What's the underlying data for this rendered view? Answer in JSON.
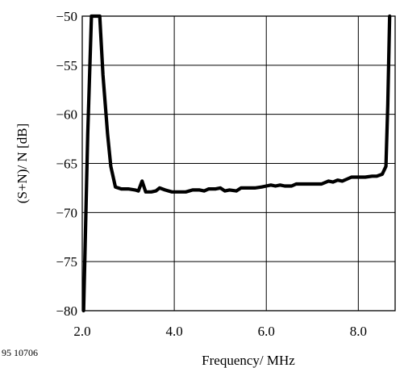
{
  "chart_data": {
    "type": "line",
    "xlabel": "Frequency/ MHz",
    "ylabel": "(S+N)/ N [dB]",
    "xlim": [
      2.0,
      8.8
    ],
    "ylim": [
      -80,
      -50
    ],
    "x_ticks": [
      "2.0",
      "4.0",
      "6.0",
      "8.0"
    ],
    "x_tick_values": [
      2.0,
      4.0,
      6.0,
      8.0
    ],
    "y_ticks": [
      "−50",
      "−55",
      "−60",
      "−65",
      "−70",
      "−75",
      "−80"
    ],
    "y_tick_values": [
      -50,
      -55,
      -60,
      -65,
      -70,
      -75,
      -80
    ],
    "grid": true,
    "series": [
      {
        "color": "#000000",
        "points": [
          [
            2.03,
            -80
          ],
          [
            2.12,
            -62
          ],
          [
            2.2,
            -50
          ],
          [
            2.38,
            -50
          ],
          [
            2.45,
            -56
          ],
          [
            2.55,
            -62
          ],
          [
            2.62,
            -65.3
          ],
          [
            2.72,
            -67.4
          ],
          [
            2.85,
            -67.6
          ],
          [
            3.0,
            -67.6
          ],
          [
            3.15,
            -67.7
          ],
          [
            3.22,
            -67.8
          ],
          [
            3.3,
            -66.8
          ],
          [
            3.38,
            -67.9
          ],
          [
            3.5,
            -67.9
          ],
          [
            3.6,
            -67.8
          ],
          [
            3.68,
            -67.5
          ],
          [
            3.8,
            -67.7
          ],
          [
            3.95,
            -67.9
          ],
          [
            4.1,
            -67.9
          ],
          [
            4.25,
            -67.9
          ],
          [
            4.4,
            -67.7
          ],
          [
            4.55,
            -67.7
          ],
          [
            4.65,
            -67.8
          ],
          [
            4.75,
            -67.6
          ],
          [
            4.9,
            -67.6
          ],
          [
            5.0,
            -67.5
          ],
          [
            5.1,
            -67.8
          ],
          [
            5.2,
            -67.7
          ],
          [
            5.35,
            -67.8
          ],
          [
            5.45,
            -67.5
          ],
          [
            5.6,
            -67.5
          ],
          [
            5.75,
            -67.5
          ],
          [
            5.9,
            -67.4
          ],
          [
            6.0,
            -67.3
          ],
          [
            6.1,
            -67.2
          ],
          [
            6.2,
            -67.3
          ],
          [
            6.3,
            -67.2
          ],
          [
            6.4,
            -67.3
          ],
          [
            6.55,
            -67.3
          ],
          [
            6.65,
            -67.1
          ],
          [
            6.8,
            -67.1
          ],
          [
            7.0,
            -67.1
          ],
          [
            7.2,
            -67.1
          ],
          [
            7.35,
            -66.8
          ],
          [
            7.45,
            -66.9
          ],
          [
            7.55,
            -66.7
          ],
          [
            7.65,
            -66.8
          ],
          [
            7.75,
            -66.6
          ],
          [
            7.85,
            -66.4
          ],
          [
            8.0,
            -66.4
          ],
          [
            8.15,
            -66.4
          ],
          [
            8.3,
            -66.3
          ],
          [
            8.4,
            -66.3
          ],
          [
            8.52,
            -66.1
          ],
          [
            8.6,
            -65.3
          ],
          [
            8.64,
            -59
          ],
          [
            8.68,
            -50
          ]
        ]
      }
    ]
  },
  "footer": {
    "figure_code": "95 10706"
  }
}
